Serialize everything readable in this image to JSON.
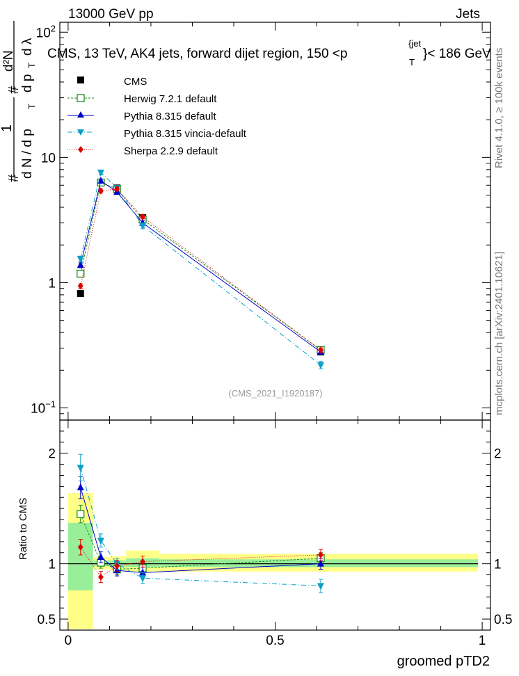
{
  "header": {
    "left": "13000 GeV pp",
    "right": "Jets"
  },
  "side_labels": {
    "rivet": "Rivet 4.1.0, ≥ 100k events",
    "mcplots": "mcplots.cern.ch [arXiv:2401.10621]"
  },
  "chart_data": [
    {
      "type": "line",
      "panel": "main",
      "title_main": "CMS, 13 TeV, AK4 jets, forward dijet region, 150 <p",
      "title_sup": "{jet",
      "title_sub": "T",
      "title_end": "}< 186 GeV",
      "watermark": "(CMS_2021_I1920187)",
      "ylabel": {
        "lead": "#",
        "frac_num": "1",
        "frac_den": "d N / d p",
        "frac_den_sub": "T",
        "lead2": "#",
        "num2": "d²N",
        "den2": "d p",
        "den2_sub": "T",
        "den2_end": "d λ"
      },
      "yscale": "log",
      "ylim": [
        0.08,
        120
      ],
      "xlim": [
        -0.02,
        1.02
      ],
      "yticks": [
        {
          "v": 0.1,
          "base": "10",
          "exp": "−1"
        },
        {
          "v": 1,
          "base": "1",
          "exp": ""
        },
        {
          "v": 10,
          "base": "10",
          "exp": ""
        },
        {
          "v": 100,
          "base": "10",
          "exp": "2"
        }
      ],
      "legend": [
        {
          "label": "CMS"
        },
        {
          "label": "Herwig 7.2.1 default"
        },
        {
          "label": "Pythia 8.315 default"
        },
        {
          "label": "Pythia 8.315 vincia-default"
        },
        {
          "label": "Sherpa 2.2.9 default"
        }
      ],
      "x": [
        0.03,
        0.079,
        0.118,
        0.18,
        0.61
      ],
      "series": [
        {
          "name": "CMS",
          "color": "#000000",
          "marker": "square",
          "values": [
            0.82,
            6.3,
            5.7,
            3.3,
            0.28
          ],
          "errors": [
            0.04,
            0.25,
            0.2,
            0.15,
            0.015
          ]
        },
        {
          "name": "Herwig 7.2.1 default",
          "color": "#1a8a1a",
          "marker": "open-square",
          "dash": "3,2",
          "values": [
            1.18,
            6.3,
            5.6,
            3.2,
            0.29
          ],
          "errors": [
            0.05,
            0.2,
            0.2,
            0.12,
            0.012
          ]
        },
        {
          "name": "Pythia 8.315 default",
          "color": "#0000cc",
          "marker": "triangle-up",
          "dash": "",
          "values": [
            1.38,
            6.5,
            5.3,
            3.0,
            0.28
          ],
          "errors": [
            0.06,
            0.2,
            0.2,
            0.12,
            0.012
          ]
        },
        {
          "name": "Pythia 8.315 vincia-default",
          "color": "#0aa0c8",
          "marker": "triangle-down",
          "dash": "7,3,1,3",
          "values": [
            1.55,
            7.6,
            5.7,
            2.85,
            0.22
          ],
          "errors": [
            0.08,
            0.3,
            0.2,
            0.15,
            0.015
          ]
        },
        {
          "name": "Sherpa 2.2.9 default",
          "color": "#e00000",
          "marker": "diamond",
          "dash": "1,2",
          "values": [
            0.94,
            5.4,
            5.6,
            3.35,
            0.29
          ],
          "errors": [
            0.04,
            0.2,
            0.2,
            0.12,
            0.012
          ]
        }
      ]
    },
    {
      "type": "line",
      "panel": "ratio",
      "ylabel": "Ratio to CMS",
      "xlabel": "groomed pTD2",
      "ylim": [
        0.4,
        2.3
      ],
      "xlim": [
        -0.02,
        1.02
      ],
      "yticks": [
        {
          "v": 0.5,
          "label": "0.5"
        },
        {
          "v": 1,
          "label": "1"
        },
        {
          "v": 2,
          "label": "2"
        }
      ],
      "xticks": [
        {
          "v": 0,
          "label": "0"
        },
        {
          "v": 0.5,
          "label": "0.5"
        },
        {
          "v": 1,
          "label": "1"
        }
      ],
      "bands": [
        {
          "x0": 0.0,
          "x1": 0.06,
          "yellow": [
            0.41,
            1.64
          ],
          "green": [
            0.76,
            1.37
          ]
        },
        {
          "x0": 0.06,
          "x1": 0.1,
          "yellow": [
            0.95,
            1.06
          ],
          "green": [
            0.98,
            1.03
          ]
        },
        {
          "x0": 0.1,
          "x1": 0.14,
          "yellow": [
            0.94,
            1.07
          ],
          "green": [
            0.97,
            1.03
          ]
        },
        {
          "x0": 0.14,
          "x1": 0.22,
          "yellow": [
            0.93,
            1.12
          ],
          "green": [
            0.97,
            1.05
          ]
        },
        {
          "x0": 0.22,
          "x1": 0.99,
          "yellow": [
            0.93,
            1.09
          ],
          "green": [
            0.97,
            1.04
          ]
        }
      ],
      "x": [
        0.03,
        0.079,
        0.118,
        0.18,
        0.61
      ],
      "series": [
        {
          "name": "Herwig 7.2.1 default",
          "color": "#1a8a1a",
          "marker": "open-square",
          "dash": "3,2",
          "values": [
            1.45,
            1.01,
            0.95,
            0.96,
            1.05
          ],
          "errors": [
            0.08,
            0.05,
            0.05,
            0.05,
            0.05
          ]
        },
        {
          "name": "Pythia 8.315 default",
          "color": "#0000cc",
          "marker": "triangle-up",
          "dash": "",
          "values": [
            1.69,
            1.06,
            0.94,
            0.92,
            1.0
          ],
          "errors": [
            0.1,
            0.05,
            0.05,
            0.05,
            0.05
          ]
        },
        {
          "name": "Pythia 8.315 vincia-default",
          "color": "#0aa0c8",
          "marker": "triangle-down",
          "dash": "7,3,1,3",
          "values": [
            1.87,
            1.21,
            1.0,
            0.87,
            0.8
          ],
          "errors": [
            0.12,
            0.06,
            0.05,
            0.05,
            0.06
          ]
        },
        {
          "name": "Sherpa 2.2.9 default",
          "color": "#e00000",
          "marker": "diamond",
          "dash": "1,2",
          "values": [
            1.15,
            0.88,
            0.98,
            1.02,
            1.08
          ],
          "errors": [
            0.07,
            0.05,
            0.05,
            0.05,
            0.05
          ]
        }
      ]
    }
  ]
}
